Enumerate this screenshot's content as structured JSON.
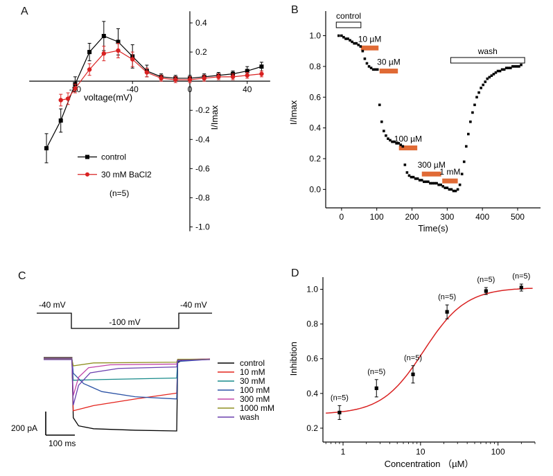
{
  "figure": {
    "background": "#ffffff",
    "panel_labels": {
      "a": "A",
      "b": "B",
      "c": "C",
      "d": "D"
    }
  },
  "chart_data": [
    {
      "id": "A",
      "type": "line",
      "xlabel": "voltage(mV)",
      "ylabel": "I/Imax",
      "xlim": [
        -115,
        58
      ],
      "ylim": [
        -1.05,
        0.5
      ],
      "xticks": [
        "-80",
        "-40",
        "0",
        "40"
      ],
      "yticks": [
        "0.4",
        "0.2",
        "-0.2",
        "-0.4",
        "-0.6",
        "-0.8",
        "-1.0"
      ],
      "annotation": "(n=5)",
      "axis_style": "origin-crossed",
      "series": [
        {
          "name": "control",
          "color": "#000000",
          "marker": "square",
          "x": [
            -100,
            -90,
            -80,
            -70,
            -60,
            -50,
            -40,
            -30,
            -20,
            -10,
            0,
            10,
            20,
            30,
            40,
            50
          ],
          "y": [
            -0.46,
            -0.27,
            -0.02,
            0.2,
            0.31,
            0.27,
            0.17,
            0.07,
            0.03,
            0.02,
            0.02,
            0.03,
            0.04,
            0.05,
            0.07,
            0.1
          ],
          "err": [
            0.1,
            0.08,
            0.05,
            0.06,
            0.1,
            0.09,
            0.08,
            0.04,
            0.02,
            0.02,
            0.02,
            0.02,
            0.02,
            0.02,
            0.03,
            0.03
          ]
        },
        {
          "name": "30 mM BaCl2",
          "color": "#d92121",
          "marker": "circle",
          "x": [
            -90,
            -85,
            -80,
            -70,
            -60,
            -50,
            -40,
            -30,
            -20,
            -10,
            0,
            10,
            20,
            30,
            40,
            50
          ],
          "y": [
            -0.13,
            -0.12,
            -0.05,
            0.08,
            0.19,
            0.21,
            0.15,
            0.06,
            0.02,
            0.01,
            0.01,
            0.02,
            0.03,
            0.03,
            0.04,
            0.05
          ],
          "err": [
            0.04,
            0.04,
            0.03,
            0.04,
            0.05,
            0.05,
            0.05,
            0.03,
            0.02,
            0.02,
            0.02,
            0.02,
            0.02,
            0.02,
            0.02,
            0.02
          ]
        }
      ]
    },
    {
      "id": "B",
      "type": "scatter",
      "xlabel": "Time(s)",
      "ylabel": "I/Imax",
      "xlim": [
        -45,
        565
      ],
      "ylim": [
        -0.12,
        1.16
      ],
      "xticks": [
        "0",
        "100",
        "200",
        "300",
        "400",
        "500"
      ],
      "yticks": [
        "0.0",
        "0.2",
        "0.4",
        "0.6",
        "0.8",
        "1.0"
      ],
      "marker_color": "#000000",
      "bar_color": "#e06a35",
      "bars": [
        {
          "label": "control",
          "x0": -15,
          "x1": 55,
          "y": 1.07,
          "style": "open"
        },
        {
          "label": "10 µM",
          "x0": 55,
          "x1": 105,
          "y": 0.92,
          "style": "orange"
        },
        {
          "label": "30 µM",
          "x0": 108,
          "x1": 160,
          "y": 0.77,
          "style": "orange"
        },
        {
          "label": "100 µM",
          "x0": 163,
          "x1": 215,
          "y": 0.27,
          "style": "orange"
        },
        {
          "label": "300 µM",
          "x0": 228,
          "x1": 283,
          "y": 0.1,
          "style": "orange"
        },
        {
          "label": "1 mM",
          "x0": 286,
          "x1": 330,
          "y": 0.055,
          "style": "orange"
        },
        {
          "label": "wash",
          "x0": 310,
          "x1": 520,
          "y": 0.84,
          "style": "open"
        }
      ],
      "points": [
        [
          -8,
          1.0
        ],
        [
          0,
          1.0
        ],
        [
          6,
          0.99
        ],
        [
          12,
          0.98
        ],
        [
          18,
          0.98
        ],
        [
          24,
          0.97
        ],
        [
          30,
          0.96
        ],
        [
          36,
          0.95
        ],
        [
          42,
          0.95
        ],
        [
          48,
          0.94
        ],
        [
          54,
          0.93
        ],
        [
          60,
          0.9
        ],
        [
          66,
          0.85
        ],
        [
          72,
          0.82
        ],
        [
          78,
          0.8
        ],
        [
          84,
          0.79
        ],
        [
          90,
          0.78
        ],
        [
          96,
          0.78
        ],
        [
          102,
          0.78
        ],
        [
          108,
          0.55
        ],
        [
          114,
          0.44
        ],
        [
          120,
          0.38
        ],
        [
          126,
          0.35
        ],
        [
          132,
          0.33
        ],
        [
          138,
          0.32
        ],
        [
          144,
          0.31
        ],
        [
          150,
          0.31
        ],
        [
          156,
          0.3
        ],
        [
          162,
          0.3
        ],
        [
          168,
          0.29
        ],
        [
          174,
          0.28
        ],
        [
          180,
          0.16
        ],
        [
          186,
          0.11
        ],
        [
          192,
          0.09
        ],
        [
          198,
          0.08
        ],
        [
          204,
          0.08
        ],
        [
          210,
          0.07
        ],
        [
          216,
          0.07
        ],
        [
          222,
          0.06
        ],
        [
          228,
          0.06
        ],
        [
          234,
          0.05
        ],
        [
          240,
          0.05
        ],
        [
          246,
          0.05
        ],
        [
          252,
          0.04
        ],
        [
          258,
          0.04
        ],
        [
          264,
          0.04
        ],
        [
          270,
          0.04
        ],
        [
          276,
          0.03
        ],
        [
          282,
          0.03
        ],
        [
          288,
          0.02
        ],
        [
          294,
          0.01
        ],
        [
          300,
          0.01
        ],
        [
          306,
          0.0
        ],
        [
          312,
          0.0
        ],
        [
          318,
          -0.01
        ],
        [
          324,
          -0.01
        ],
        [
          330,
          0.0
        ],
        [
          336,
          0.03
        ],
        [
          342,
          0.1
        ],
        [
          348,
          0.18
        ],
        [
          354,
          0.28
        ],
        [
          360,
          0.36
        ],
        [
          366,
          0.44
        ],
        [
          372,
          0.5
        ],
        [
          378,
          0.55
        ],
        [
          384,
          0.6
        ],
        [
          390,
          0.63
        ],
        [
          396,
          0.66
        ],
        [
          402,
          0.68
        ],
        [
          408,
          0.7
        ],
        [
          414,
          0.72
        ],
        [
          420,
          0.73
        ],
        [
          426,
          0.74
        ],
        [
          432,
          0.75
        ],
        [
          438,
          0.76
        ],
        [
          444,
          0.77
        ],
        [
          450,
          0.77
        ],
        [
          456,
          0.78
        ],
        [
          462,
          0.78
        ],
        [
          468,
          0.79
        ],
        [
          474,
          0.79
        ],
        [
          480,
          0.79
        ],
        [
          486,
          0.8
        ],
        [
          492,
          0.8
        ],
        [
          498,
          0.8
        ],
        [
          504,
          0.8
        ],
        [
          510,
          0.81
        ]
      ]
    },
    {
      "id": "C",
      "type": "traces",
      "protocol_labels": {
        "pre": "-40 mV",
        "step": "-100 mV",
        "post": "-40 mV"
      },
      "scalebar": {
        "vertical": "200 pA",
        "horizontal": "100 ms"
      },
      "traces": [
        {
          "name": "control",
          "color": "#000000",
          "points": [
            [
              0,
              0
            ],
            [
              0.17,
              0
            ],
            [
              0.178,
              0.82
            ],
            [
              0.21,
              0.93
            ],
            [
              0.3,
              0.97
            ],
            [
              0.55,
              0.99
            ],
            [
              0.8,
              1.0
            ],
            [
              0.806,
              0.07
            ],
            [
              0.84,
              0.03
            ],
            [
              1,
              0.02
            ]
          ]
        },
        {
          "name": "10 mM",
          "color": "#e4231c",
          "points": [
            [
              0,
              0
            ],
            [
              0.17,
              0
            ],
            [
              0.178,
              0.72
            ],
            [
              0.3,
              0.65
            ],
            [
              0.55,
              0.56
            ],
            [
              0.8,
              0.48
            ],
            [
              0.806,
              0.05
            ],
            [
              0.84,
              0.02
            ],
            [
              1,
              0.02
            ]
          ]
        },
        {
          "name": "30 mM",
          "color": "#178a8a",
          "points": [
            [
              0,
              0
            ],
            [
              0.17,
              0
            ],
            [
              0.178,
              0.3
            ],
            [
              0.35,
              0.29
            ],
            [
              0.8,
              0.27
            ],
            [
              0.806,
              0.03
            ],
            [
              1,
              0.01
            ]
          ]
        },
        {
          "name": "100 mM",
          "color": "#2b52a5",
          "points": [
            [
              0,
              0
            ],
            [
              0.17,
              0
            ],
            [
              0.178,
              0.2
            ],
            [
              0.24,
              0.34
            ],
            [
              0.35,
              0.45
            ],
            [
              0.55,
              0.52
            ],
            [
              0.8,
              0.55
            ],
            [
              0.806,
              0.04
            ],
            [
              1,
              0.01
            ]
          ]
        },
        {
          "name": "300 mM",
          "color": "#c243a7",
          "points": [
            [
              0,
              0
            ],
            [
              0.17,
              0
            ],
            [
              0.178,
              0.5
            ],
            [
              0.21,
              0.25
            ],
            [
              0.27,
              0.12
            ],
            [
              0.4,
              0.08
            ],
            [
              0.8,
              0.07
            ],
            [
              0.806,
              0.01
            ],
            [
              1,
              0.0
            ]
          ]
        },
        {
          "name": "1000 mM",
          "color": "#8f8f20",
          "points": [
            [
              0,
              0
            ],
            [
              0.17,
              0
            ],
            [
              0.178,
              0.09
            ],
            [
              0.3,
              0.05
            ],
            [
              0.8,
              0.04
            ],
            [
              0.806,
              0.0
            ],
            [
              1,
              0.0
            ]
          ]
        },
        {
          "name": "wash",
          "color": "#6a3fae",
          "points": [
            [
              0,
              0
            ],
            [
              0.17,
              0
            ],
            [
              0.178,
              0.62
            ],
            [
              0.21,
              0.35
            ],
            [
              0.28,
              0.18
            ],
            [
              0.45,
              0.12
            ],
            [
              0.8,
              0.1
            ],
            [
              0.806,
              0.01
            ],
            [
              1,
              0.0
            ]
          ]
        }
      ]
    },
    {
      "id": "D",
      "type": "scatter-fit",
      "xlabel": "Concentration （µM）",
      "ylabel": "Inhibtion",
      "xscale": "log",
      "xlim": [
        0.55,
        300
      ],
      "ylim": [
        0.12,
        1.07
      ],
      "xticks": [
        "1",
        "10",
        "100"
      ],
      "minor_ticks": [
        0.6,
        0.7,
        0.8,
        0.9,
        2,
        3,
        4,
        5,
        6,
        7,
        8,
        9,
        20,
        30,
        40,
        50,
        60,
        70,
        80,
        90,
        200,
        300
      ],
      "yticks": [
        "0.2",
        "0.4",
        "0.6",
        "0.8",
        "1.0"
      ],
      "marker_color": "#000000",
      "fit_color": "#d92121",
      "fit": {
        "base": 0.28,
        "max": 1.01,
        "ec50": 11,
        "hill": 1.6,
        "x_start": 0.6,
        "x_end": 280
      },
      "points": [
        {
          "x": 0.9,
          "y": 0.29,
          "err": 0.04,
          "label": "(n=5)"
        },
        {
          "x": 2.7,
          "y": 0.43,
          "err": 0.05,
          "label": "(n=5)"
        },
        {
          "x": 8,
          "y": 0.51,
          "err": 0.05,
          "label": "(n=5)"
        },
        {
          "x": 22,
          "y": 0.87,
          "err": 0.04,
          "label": "(n=5)"
        },
        {
          "x": 70,
          "y": 0.99,
          "err": 0.02,
          "label": "(n=5)"
        },
        {
          "x": 200,
          "y": 1.01,
          "err": 0.02,
          "label": "(n=5)"
        }
      ]
    }
  ]
}
